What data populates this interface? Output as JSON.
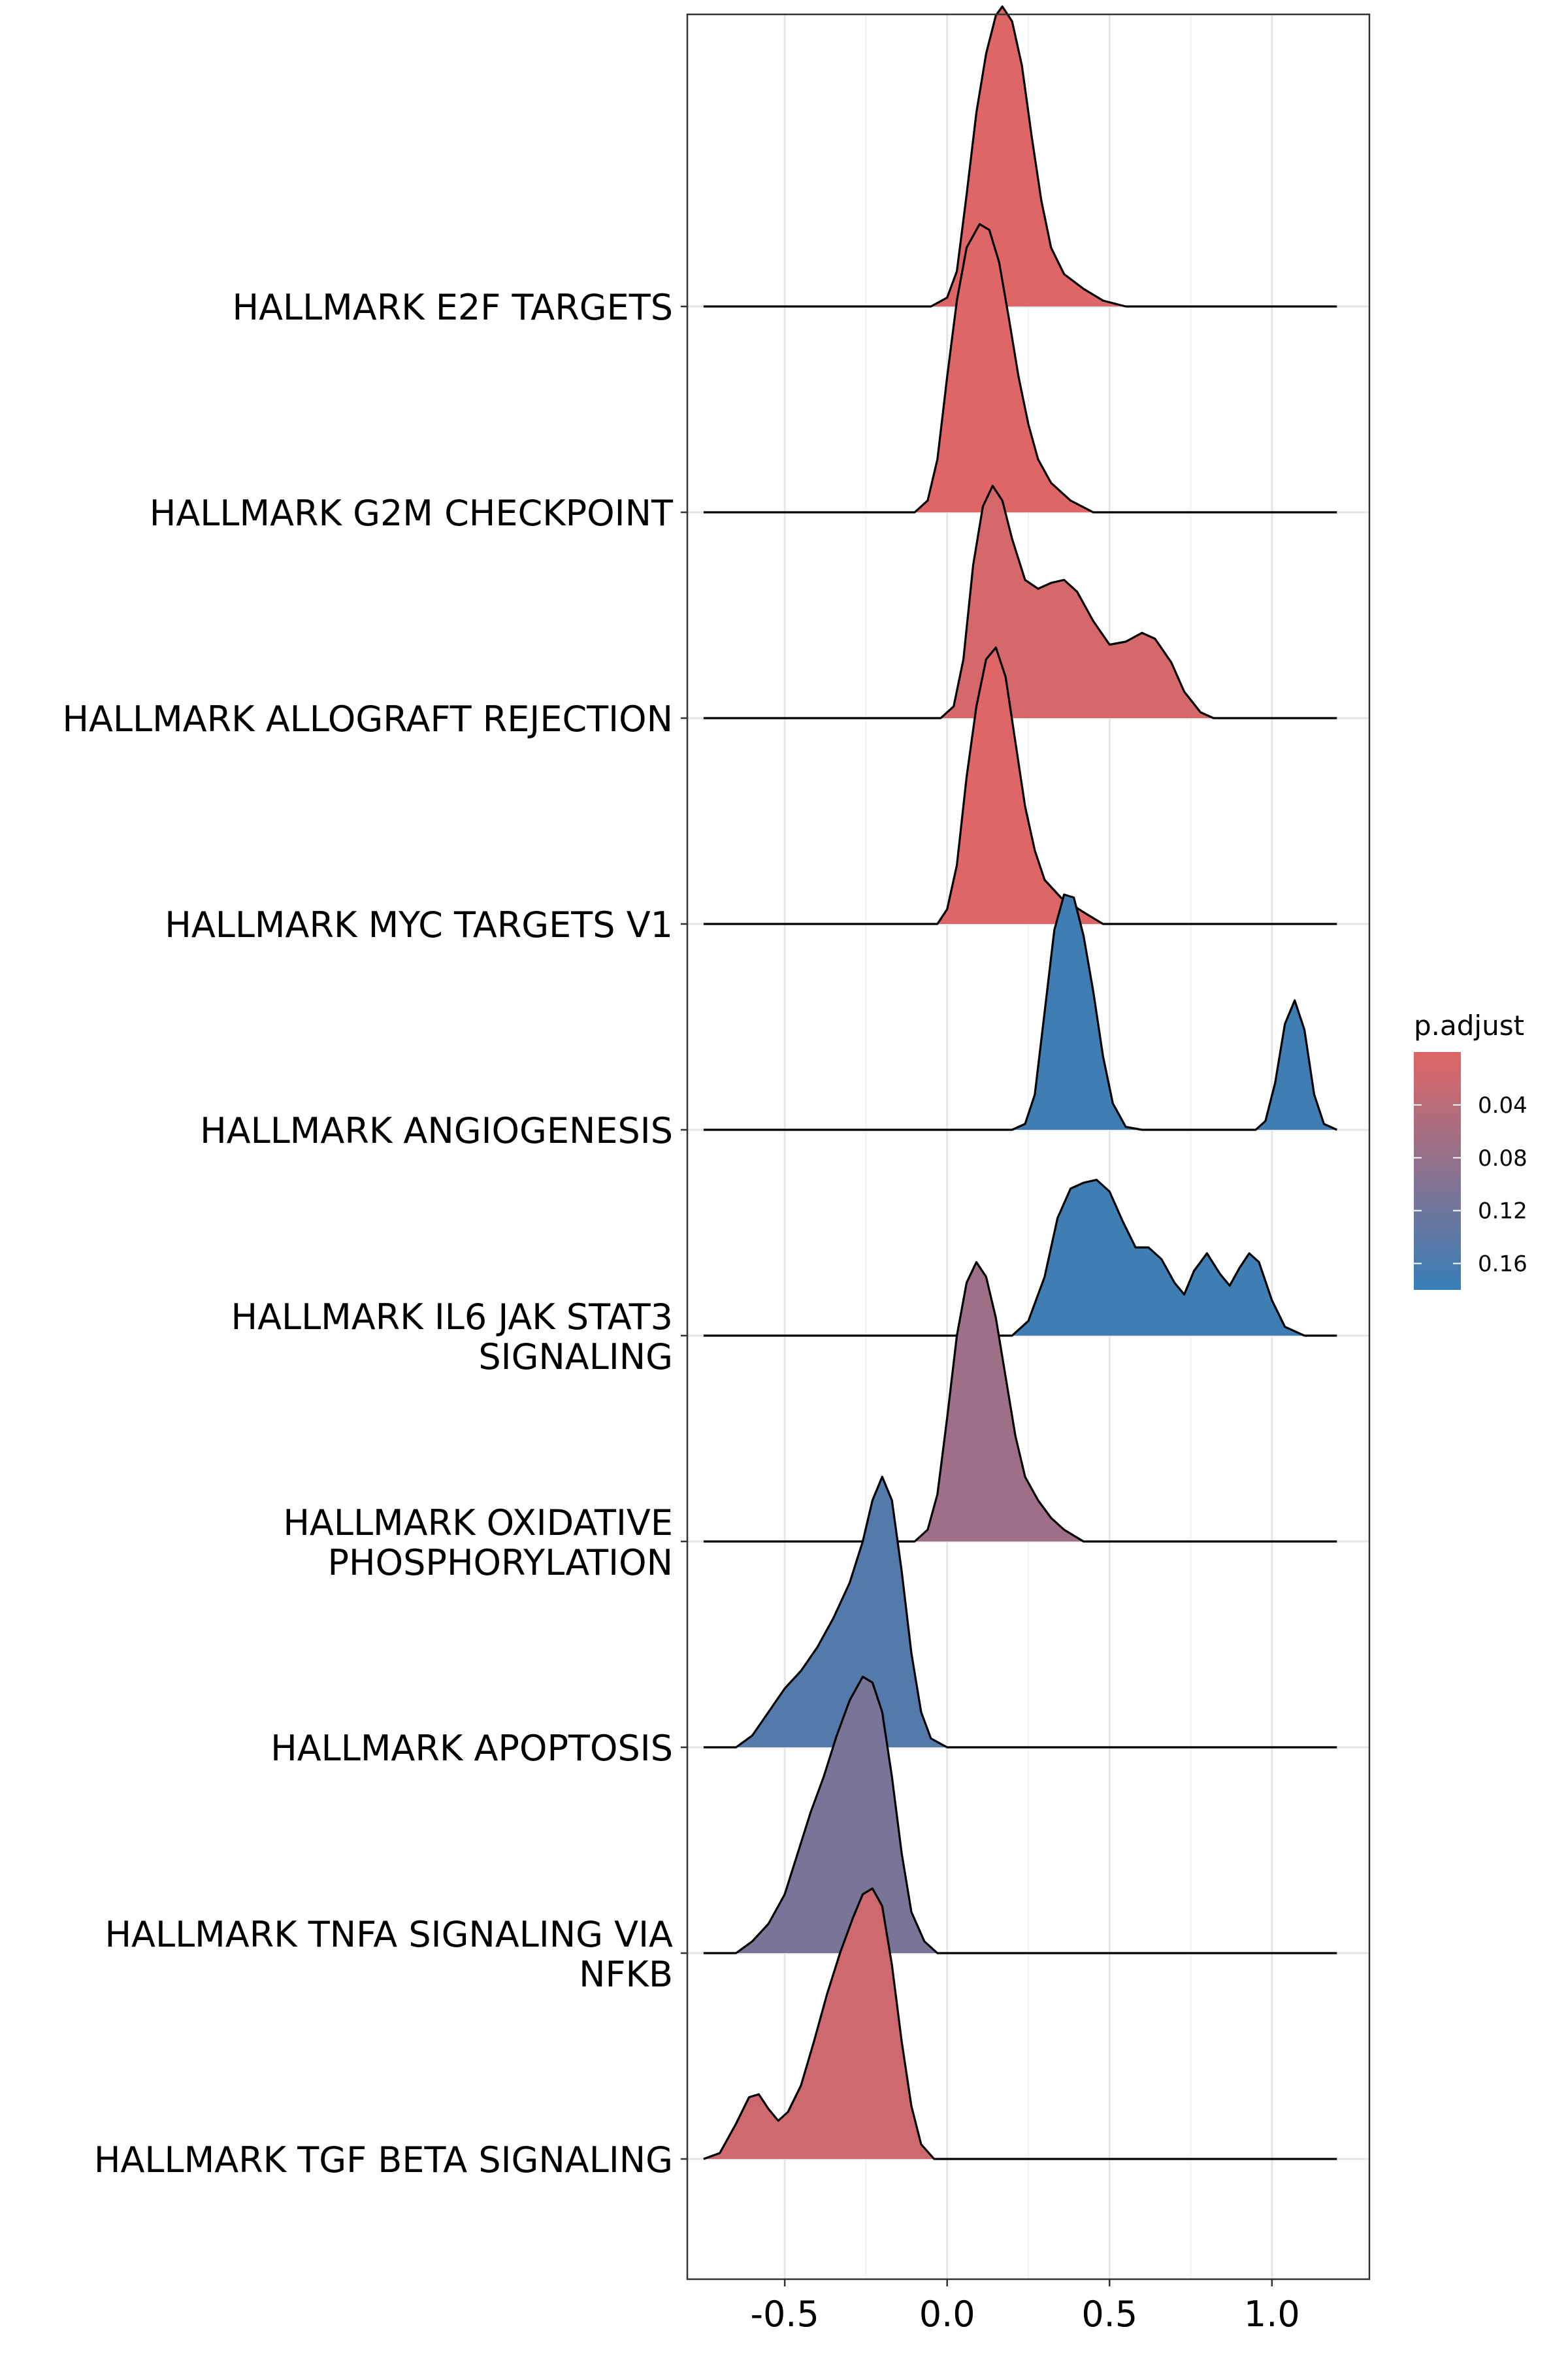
{
  "chart_data": {
    "type": "ridgeline",
    "title": "",
    "xlabel": "",
    "ylabel": "",
    "xlim": [
      -0.8,
      1.3
    ],
    "x_ticks": [
      -0.5,
      0.0,
      0.5,
      1.0
    ],
    "x_tick_labels": [
      "-0.5",
      "0.0",
      "0.5",
      "1.0"
    ],
    "grid": true,
    "legend": {
      "title": "p.adjust",
      "position": "right",
      "ticks": [
        0.04,
        0.08,
        0.12,
        0.16
      ],
      "tick_labels": [
        "0.04",
        "0.08",
        "0.12",
        "0.16"
      ],
      "range": [
        0.0,
        0.18
      ],
      "low_color": "#E06666",
      "high_color": "#377EB8"
    },
    "series": [
      {
        "label_lines": [
          "HALLMARK E2F TARGETS"
        ],
        "p_adjust": 0.001,
        "density": [
          [
            -0.75,
            0
          ],
          [
            -0.05,
            0
          ],
          [
            0.0,
            0.03
          ],
          [
            0.03,
            0.12
          ],
          [
            0.06,
            0.38
          ],
          [
            0.09,
            0.66
          ],
          [
            0.12,
            0.86
          ],
          [
            0.15,
            0.99
          ],
          [
            0.17,
            1.02
          ],
          [
            0.2,
            0.97
          ],
          [
            0.23,
            0.82
          ],
          [
            0.26,
            0.58
          ],
          [
            0.29,
            0.36
          ],
          [
            0.32,
            0.2
          ],
          [
            0.36,
            0.11
          ],
          [
            0.42,
            0.06
          ],
          [
            0.48,
            0.02
          ],
          [
            0.55,
            0
          ],
          [
            1.2,
            0
          ]
        ]
      },
      {
        "label_lines": [
          "HALLMARK G2M CHECKPOINT"
        ],
        "p_adjust": 0.001,
        "density": [
          [
            -0.75,
            0
          ],
          [
            -0.1,
            0
          ],
          [
            -0.06,
            0.04
          ],
          [
            -0.03,
            0.18
          ],
          [
            0.0,
            0.46
          ],
          [
            0.03,
            0.72
          ],
          [
            0.06,
            0.9
          ],
          [
            0.1,
            0.98
          ],
          [
            0.13,
            0.96
          ],
          [
            0.16,
            0.85
          ],
          [
            0.19,
            0.66
          ],
          [
            0.22,
            0.46
          ],
          [
            0.25,
            0.3
          ],
          [
            0.28,
            0.18
          ],
          [
            0.32,
            0.1
          ],
          [
            0.38,
            0.04
          ],
          [
            0.45,
            0
          ],
          [
            1.2,
            0
          ]
        ]
      },
      {
        "label_lines": [
          "HALLMARK ALLOGRAFT REJECTION"
        ],
        "p_adjust": 0.012,
        "density": [
          [
            -0.75,
            0
          ],
          [
            -0.02,
            0
          ],
          [
            0.02,
            0.04
          ],
          [
            0.05,
            0.2
          ],
          [
            0.08,
            0.52
          ],
          [
            0.11,
            0.72
          ],
          [
            0.14,
            0.79
          ],
          [
            0.17,
            0.74
          ],
          [
            0.2,
            0.61
          ],
          [
            0.24,
            0.47
          ],
          [
            0.28,
            0.44
          ],
          [
            0.32,
            0.46
          ],
          [
            0.36,
            0.47
          ],
          [
            0.4,
            0.43
          ],
          [
            0.45,
            0.33
          ],
          [
            0.5,
            0.25
          ],
          [
            0.55,
            0.26
          ],
          [
            0.6,
            0.29
          ],
          [
            0.64,
            0.27
          ],
          [
            0.69,
            0.19
          ],
          [
            0.73,
            0.09
          ],
          [
            0.78,
            0.02
          ],
          [
            0.82,
            0
          ],
          [
            1.2,
            0
          ]
        ]
      },
      {
        "label_lines": [
          "HALLMARK MYC TARGETS V1"
        ],
        "p_adjust": 0.001,
        "density": [
          [
            -0.75,
            0
          ],
          [
            -0.03,
            0
          ],
          [
            0.0,
            0.05
          ],
          [
            0.03,
            0.2
          ],
          [
            0.06,
            0.5
          ],
          [
            0.09,
            0.74
          ],
          [
            0.12,
            0.9
          ],
          [
            0.15,
            0.94
          ],
          [
            0.18,
            0.84
          ],
          [
            0.21,
            0.62
          ],
          [
            0.24,
            0.4
          ],
          [
            0.27,
            0.25
          ],
          [
            0.3,
            0.15
          ],
          [
            0.35,
            0.09
          ],
          [
            0.42,
            0.04
          ],
          [
            0.48,
            0
          ],
          [
            1.2,
            0
          ]
        ]
      },
      {
        "label_lines": [
          "HALLMARK ANGIOGENESIS"
        ],
        "p_adjust": 0.17,
        "density": [
          [
            -0.75,
            0
          ],
          [
            0.2,
            0
          ],
          [
            0.24,
            0.02
          ],
          [
            0.27,
            0.12
          ],
          [
            0.3,
            0.4
          ],
          [
            0.33,
            0.68
          ],
          [
            0.36,
            0.8
          ],
          [
            0.39,
            0.79
          ],
          [
            0.42,
            0.66
          ],
          [
            0.45,
            0.47
          ],
          [
            0.48,
            0.25
          ],
          [
            0.51,
            0.09
          ],
          [
            0.55,
            0.01
          ],
          [
            0.6,
            0
          ],
          [
            0.95,
            0
          ],
          [
            0.98,
            0.03
          ],
          [
            1.01,
            0.16
          ],
          [
            1.04,
            0.36
          ],
          [
            1.07,
            0.44
          ],
          [
            1.1,
            0.34
          ],
          [
            1.13,
            0.12
          ],
          [
            1.16,
            0.02
          ],
          [
            1.2,
            0
          ]
        ]
      },
      {
        "label_lines": [
          "HALLMARK IL6 JAK STAT3",
          "SIGNALING"
        ],
        "p_adjust": 0.17,
        "density": [
          [
            -0.75,
            0
          ],
          [
            0.2,
            0
          ],
          [
            0.25,
            0.05
          ],
          [
            0.3,
            0.2
          ],
          [
            0.34,
            0.4
          ],
          [
            0.38,
            0.5
          ],
          [
            0.42,
            0.52
          ],
          [
            0.46,
            0.53
          ],
          [
            0.5,
            0.49
          ],
          [
            0.54,
            0.39
          ],
          [
            0.58,
            0.3
          ],
          [
            0.62,
            0.3
          ],
          [
            0.66,
            0.26
          ],
          [
            0.7,
            0.18
          ],
          [
            0.73,
            0.14
          ],
          [
            0.76,
            0.22
          ],
          [
            0.8,
            0.28
          ],
          [
            0.84,
            0.21
          ],
          [
            0.87,
            0.17
          ],
          [
            0.9,
            0.23
          ],
          [
            0.93,
            0.28
          ],
          [
            0.96,
            0.25
          ],
          [
            1.0,
            0.12
          ],
          [
            1.04,
            0.03
          ],
          [
            1.1,
            0
          ],
          [
            1.2,
            0
          ]
        ]
      },
      {
        "label_lines": [
          "HALLMARK OXIDATIVE",
          "PHOSPHORYLATION"
        ],
        "p_adjust": 0.07,
        "density": [
          [
            -0.75,
            0
          ],
          [
            -0.1,
            0
          ],
          [
            -0.06,
            0.04
          ],
          [
            -0.03,
            0.16
          ],
          [
            0.0,
            0.42
          ],
          [
            0.03,
            0.7
          ],
          [
            0.06,
            0.88
          ],
          [
            0.09,
            0.95
          ],
          [
            0.12,
            0.9
          ],
          [
            0.15,
            0.76
          ],
          [
            0.18,
            0.56
          ],
          [
            0.21,
            0.36
          ],
          [
            0.24,
            0.22
          ],
          [
            0.28,
            0.14
          ],
          [
            0.32,
            0.08
          ],
          [
            0.36,
            0.04
          ],
          [
            0.42,
            0
          ],
          [
            1.2,
            0
          ]
        ]
      },
      {
        "label_lines": [
          "HALLMARK APOPTOSIS"
        ],
        "p_adjust": 0.15,
        "density": [
          [
            -0.75,
            0
          ],
          [
            -0.65,
            0
          ],
          [
            -0.6,
            0.04
          ],
          [
            -0.55,
            0.12
          ],
          [
            -0.5,
            0.2
          ],
          [
            -0.45,
            0.26
          ],
          [
            -0.4,
            0.34
          ],
          [
            -0.35,
            0.44
          ],
          [
            -0.3,
            0.56
          ],
          [
            -0.26,
            0.7
          ],
          [
            -0.23,
            0.84
          ],
          [
            -0.2,
            0.92
          ],
          [
            -0.17,
            0.84
          ],
          [
            -0.14,
            0.6
          ],
          [
            -0.11,
            0.32
          ],
          [
            -0.08,
            0.12
          ],
          [
            -0.05,
            0.03
          ],
          [
            0.0,
            0
          ],
          [
            1.2,
            0
          ]
        ]
      },
      {
        "label_lines": [
          "HALLMARK TNFA SIGNALING VIA",
          "NFKB"
        ],
        "p_adjust": 0.11,
        "density": [
          [
            -0.75,
            0
          ],
          [
            -0.65,
            0
          ],
          [
            -0.6,
            0.04
          ],
          [
            -0.55,
            0.1
          ],
          [
            -0.5,
            0.2
          ],
          [
            -0.46,
            0.34
          ],
          [
            -0.42,
            0.48
          ],
          [
            -0.38,
            0.6
          ],
          [
            -0.34,
            0.74
          ],
          [
            -0.3,
            0.86
          ],
          [
            -0.26,
            0.94
          ],
          [
            -0.23,
            0.92
          ],
          [
            -0.2,
            0.82
          ],
          [
            -0.17,
            0.6
          ],
          [
            -0.14,
            0.34
          ],
          [
            -0.11,
            0.14
          ],
          [
            -0.07,
            0.04
          ],
          [
            -0.03,
            0
          ],
          [
            1.2,
            0
          ]
        ]
      },
      {
        "label_lines": [
          "HALLMARK TGF BETA SIGNALING"
        ],
        "p_adjust": 0.02,
        "density": [
          [
            -0.75,
            0
          ],
          [
            -0.7,
            0.02
          ],
          [
            -0.65,
            0.12
          ],
          [
            -0.61,
            0.21
          ],
          [
            -0.58,
            0.22
          ],
          [
            -0.55,
            0.17
          ],
          [
            -0.52,
            0.13
          ],
          [
            -0.49,
            0.16
          ],
          [
            -0.45,
            0.25
          ],
          [
            -0.41,
            0.4
          ],
          [
            -0.37,
            0.56
          ],
          [
            -0.33,
            0.7
          ],
          [
            -0.29,
            0.82
          ],
          [
            -0.26,
            0.9
          ],
          [
            -0.23,
            0.92
          ],
          [
            -0.2,
            0.86
          ],
          [
            -0.17,
            0.66
          ],
          [
            -0.14,
            0.4
          ],
          [
            -0.11,
            0.18
          ],
          [
            -0.08,
            0.05
          ],
          [
            -0.04,
            0
          ],
          [
            1.2,
            0
          ]
        ]
      }
    ]
  }
}
